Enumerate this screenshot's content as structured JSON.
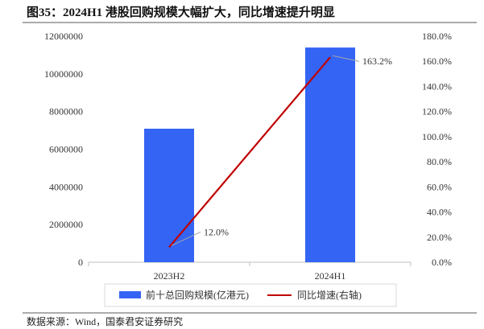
{
  "source": "数据来源：Wind，国泰君安证券研究",
  "colors": {
    "bar": "#3464F4",
    "line": "#C00000",
    "axis": "#BFBFBF",
    "rule": "#595959",
    "leader": "#A6A6A6",
    "legend_border": "#D9D9D9"
  },
  "chart_data": {
    "type": "bar",
    "title": "图35：2024H1 港股回购规模大幅扩大，同比增速提升明显",
    "categories": [
      "2023H2",
      "2024H1"
    ],
    "series": [
      {
        "name": "前十总回购规模(亿港元)",
        "type": "bar",
        "axis": "left",
        "values": [
          7090000,
          11400000
        ]
      },
      {
        "name": "同比增速(右轴)",
        "type": "line",
        "axis": "right",
        "values": [
          12.0,
          163.2
        ],
        "labels": [
          "12.0%",
          "163.2%"
        ]
      }
    ],
    "y_left": {
      "range": [
        0,
        12000000
      ],
      "tick_labels": [
        "0",
        "2000000",
        "4000000",
        "6000000",
        "8000000",
        "10000000",
        "12000000"
      ]
    },
    "y_right": {
      "range": [
        0,
        180
      ],
      "tick_labels": [
        "0.0%",
        "20.0%",
        "40.0%",
        "60.0%",
        "80.0%",
        "100.0%",
        "120.0%",
        "140.0%",
        "160.0%",
        "180.0%"
      ]
    },
    "legend": "bottom",
    "grid": false
  }
}
